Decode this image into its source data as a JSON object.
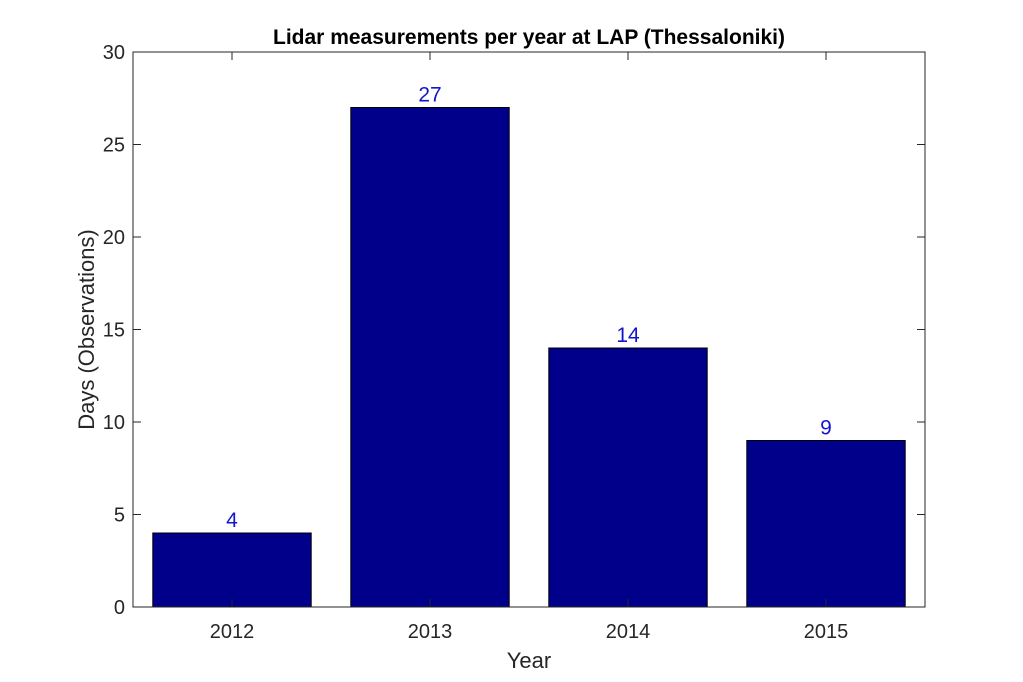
{
  "chart_data": {
    "type": "bar",
    "title": "Lidar measurements per year at LAP (Thessaloniki)",
    "xlabel": "Year",
    "ylabel": "Days (Observations)",
    "categories": [
      "2012",
      "2013",
      "2014",
      "2015"
    ],
    "values": [
      4,
      27,
      14,
      9
    ],
    "data_labels": [
      "4",
      "27",
      "14",
      "9"
    ],
    "ylim": [
      0,
      30
    ],
    "yticks": [
      0,
      5,
      10,
      15,
      20,
      25,
      30
    ],
    "ytick_labels": [
      "0",
      "5",
      "10",
      "15",
      "20",
      "25",
      "30"
    ],
    "grid": false,
    "bar_color": "#00008B",
    "data_label_color": "#1515CC"
  }
}
